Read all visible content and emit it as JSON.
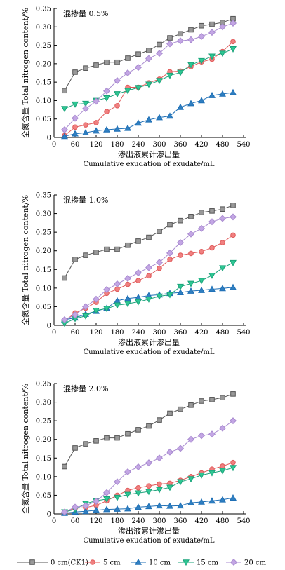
{
  "chart_data": [
    {
      "type": "line",
      "title": "混掺量 0.5%",
      "xlabel": "渗出液累计渗出量",
      "xlabel_en": "Cumulative exudation of exudate/mL",
      "ylabel": "全氮含量 Total nitrogen content/%",
      "xlim": [
        0,
        540
      ],
      "ylim": [
        0,
        0.35
      ],
      "xticks": [
        "0",
        "60",
        "120",
        "180",
        "240",
        "300",
        "360",
        "420",
        "480",
        "540"
      ],
      "yticks": [
        "0",
        "0.05",
        "0.10",
        "0.15",
        "0.20",
        "0.25",
        "0.30",
        "0.35"
      ],
      "x": [
        30,
        60,
        90,
        120,
        150,
        180,
        210,
        240,
        270,
        300,
        330,
        360,
        390,
        420,
        450,
        480,
        510
      ],
      "series": [
        {
          "name": "0 cm(CK1)",
          "values": [
            0.127,
            0.177,
            0.188,
            0.196,
            0.204,
            0.204,
            0.215,
            0.226,
            0.236,
            0.252,
            0.27,
            0.281,
            0.292,
            0.303,
            0.307,
            0.312,
            0.322
          ]
        },
        {
          "name": "5 cm",
          "values": [
            0.005,
            0.028,
            0.034,
            0.04,
            0.07,
            0.086,
            0.136,
            0.136,
            0.148,
            0.158,
            0.178,
            0.18,
            0.192,
            0.205,
            0.212,
            0.233,
            0.26
          ]
        },
        {
          "name": "10 cm",
          "values": [
            0.003,
            0.01,
            0.013,
            0.018,
            0.021,
            0.023,
            0.025,
            0.039,
            0.048,
            0.054,
            0.058,
            0.082,
            0.092,
            0.1,
            0.114,
            0.118,
            0.122
          ]
        },
        {
          "name": "15 cm",
          "values": [
            0.078,
            0.09,
            0.092,
            0.1,
            0.107,
            0.118,
            0.127,
            0.135,
            0.144,
            0.154,
            0.168,
            0.176,
            0.197,
            0.208,
            0.22,
            0.228,
            0.24
          ]
        },
        {
          "name": "20 cm",
          "values": [
            0.021,
            0.052,
            0.078,
            0.098,
            0.126,
            0.154,
            0.175,
            0.19,
            0.214,
            0.228,
            0.254,
            0.262,
            0.265,
            0.274,
            0.285,
            0.3,
            0.31
          ]
        }
      ]
    },
    {
      "type": "line",
      "title": "混掺量 1.0%",
      "xlabel": "渗出液累计渗出量",
      "xlabel_en": "Cumulative exudation of exudate/mL",
      "ylabel": "全氮含量 Total nitrogen content/%",
      "xlim": [
        0,
        540
      ],
      "ylim": [
        0,
        0.35
      ],
      "xticks": [
        "0",
        "60",
        "120",
        "180",
        "240",
        "300",
        "360",
        "420",
        "480",
        "540"
      ],
      "yticks": [
        "0",
        "0.05",
        "0.10",
        "0.15",
        "0.20",
        "0.25",
        "0.30",
        "0.35"
      ],
      "x": [
        30,
        60,
        90,
        120,
        150,
        180,
        210,
        240,
        270,
        300,
        330,
        360,
        390,
        420,
        450,
        480,
        510
      ],
      "series": [
        {
          "name": "0 cm(CK1)",
          "values": [
            0.127,
            0.177,
            0.188,
            0.196,
            0.204,
            0.204,
            0.215,
            0.226,
            0.236,
            0.252,
            0.27,
            0.281,
            0.292,
            0.303,
            0.307,
            0.312,
            0.322
          ]
        },
        {
          "name": "5 cm",
          "values": [
            0.012,
            0.033,
            0.046,
            0.062,
            0.086,
            0.097,
            0.11,
            0.12,
            0.133,
            0.153,
            0.177,
            0.188,
            0.193,
            0.198,
            0.208,
            0.222,
            0.242
          ]
        },
        {
          "name": "10 cm",
          "values": [
            0.015,
            0.02,
            0.03,
            0.038,
            0.046,
            0.066,
            0.072,
            0.075,
            0.08,
            0.082,
            0.086,
            0.088,
            0.092,
            0.094,
            0.097,
            0.099,
            0.102
          ]
        },
        {
          "name": "15 cm",
          "values": [
            0.005,
            0.018,
            0.025,
            0.04,
            0.045,
            0.054,
            0.058,
            0.063,
            0.07,
            0.078,
            0.082,
            0.104,
            0.112,
            0.12,
            0.134,
            0.154,
            0.168
          ]
        },
        {
          "name": "20 cm",
          "values": [
            0.015,
            0.028,
            0.05,
            0.07,
            0.096,
            0.111,
            0.126,
            0.141,
            0.155,
            0.169,
            0.194,
            0.222,
            0.245,
            0.26,
            0.278,
            0.287,
            0.291
          ]
        }
      ]
    },
    {
      "type": "line",
      "title": "混掺量 2.0%",
      "xlabel": "渗出液累计渗出量",
      "xlabel_en": "Cumulative exudation of exudate/mL",
      "ylabel": "全氮含量 Total nitrogen content/%",
      "xlim": [
        0,
        540
      ],
      "ylim": [
        0,
        0.35
      ],
      "xticks": [
        "0",
        "60",
        "120",
        "180",
        "240",
        "300",
        "360",
        "420",
        "480",
        "540"
      ],
      "yticks": [
        "0",
        "0.05",
        "0.10",
        "0.15",
        "0.20",
        "0.25",
        "0.30",
        "0.35"
      ],
      "x": [
        30,
        60,
        90,
        120,
        150,
        180,
        210,
        240,
        270,
        300,
        330,
        360,
        390,
        420,
        450,
        480,
        510
      ],
      "series": [
        {
          "name": "0 cm(CK1)",
          "values": [
            0.127,
            0.177,
            0.188,
            0.196,
            0.204,
            0.204,
            0.215,
            0.226,
            0.236,
            0.252,
            0.27,
            0.281,
            0.292,
            0.303,
            0.307,
            0.312,
            0.322
          ]
        },
        {
          "name": "5 cm",
          "values": [
            0.005,
            0.015,
            0.017,
            0.023,
            0.035,
            0.05,
            0.063,
            0.07,
            0.075,
            0.08,
            0.082,
            0.09,
            0.1,
            0.11,
            0.12,
            0.128,
            0.138
          ]
        },
        {
          "name": "10 cm",
          "values": [
            0.002,
            0.005,
            0.007,
            0.01,
            0.012,
            0.013,
            0.014,
            0.018,
            0.02,
            0.022,
            0.021,
            0.022,
            0.03,
            0.032,
            0.035,
            0.038,
            0.043
          ]
        },
        {
          "name": "15 cm",
          "values": [
            0.005,
            0.012,
            0.028,
            0.035,
            0.04,
            0.044,
            0.052,
            0.056,
            0.06,
            0.065,
            0.071,
            0.086,
            0.094,
            0.104,
            0.11,
            0.116,
            0.124
          ]
        },
        {
          "name": "20 cm",
          "values": [
            0.005,
            0.018,
            0.022,
            0.034,
            0.057,
            0.086,
            0.113,
            0.126,
            0.137,
            0.15,
            0.166,
            0.176,
            0.2,
            0.21,
            0.214,
            0.23,
            0.25
          ]
        }
      ]
    }
  ],
  "legend": {
    "placement": "bottom",
    "items": [
      {
        "label": "0 cm(CK1)",
        "color": "#555555",
        "fill": "#999999",
        "marker": "square"
      },
      {
        "label": "5 cm",
        "color": "#e05a5a",
        "fill": "#f08080",
        "marker": "circle"
      },
      {
        "label": "10 cm",
        "color": "#1f6fb5",
        "fill": "#2f7fc1",
        "marker": "triangle-up"
      },
      {
        "label": "15 cm",
        "color": "#1aa37a",
        "fill": "#2ec793",
        "marker": "triangle-down"
      },
      {
        "label": "20 cm",
        "color": "#a98bd0",
        "fill": "#c3a6e4",
        "marker": "diamond"
      }
    ]
  }
}
